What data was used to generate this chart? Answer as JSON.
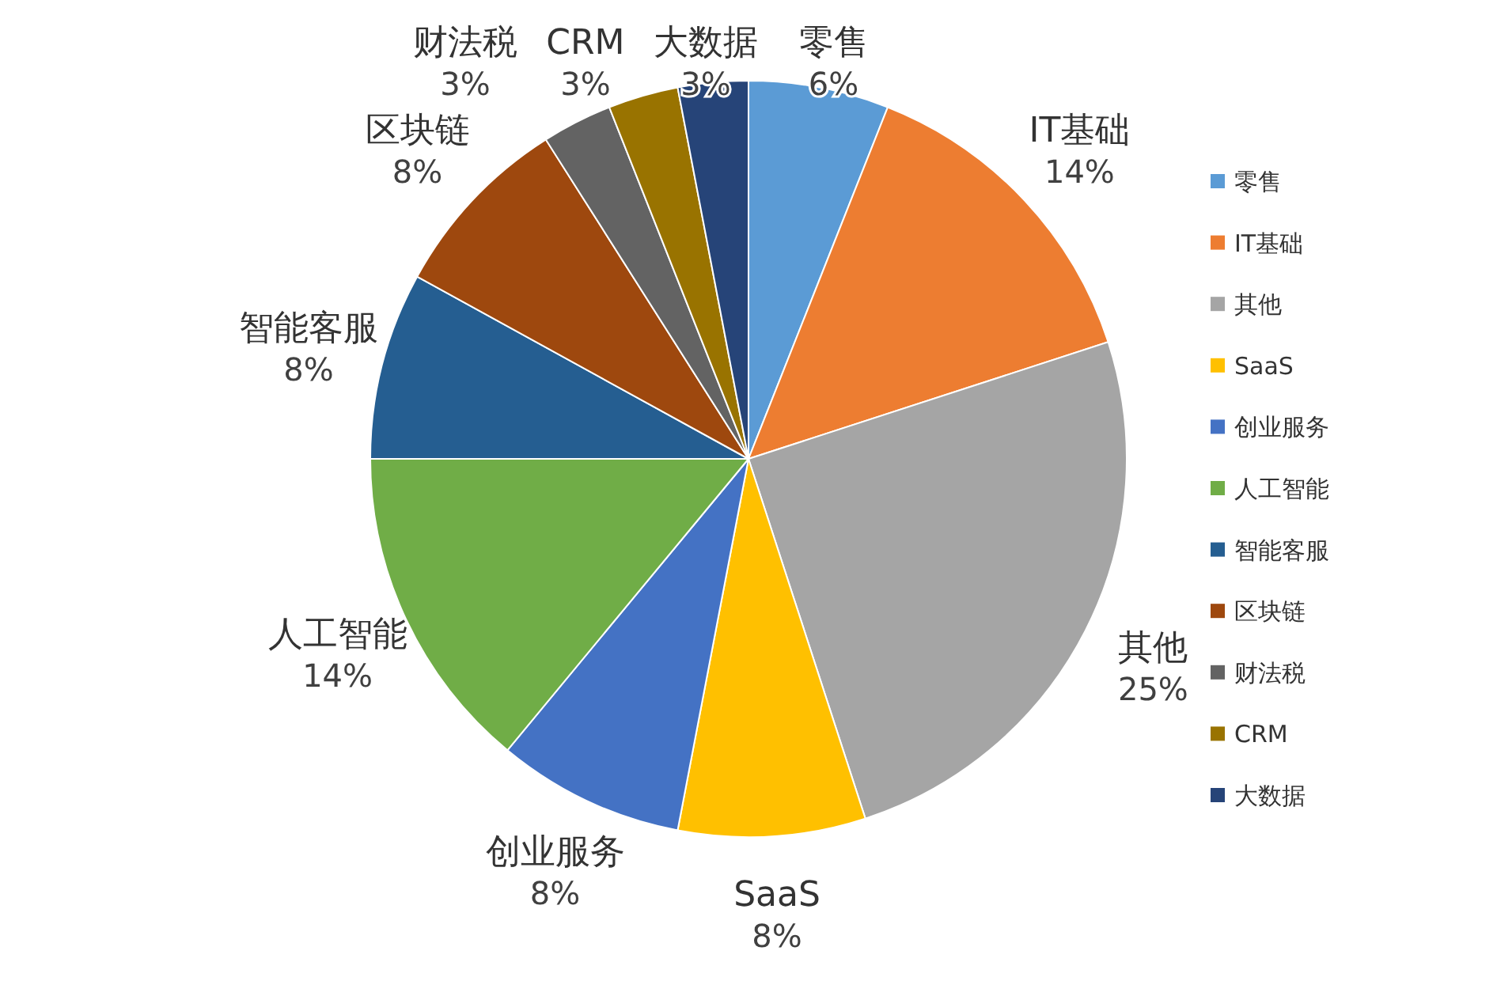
{
  "chart_data": {
    "type": "pie",
    "categories": [
      "零售",
      "IT基础",
      "其他",
      "SaaS",
      "创业服务",
      "人工智能",
      "智能客服",
      "区块链",
      "财法税",
      "CRM",
      "大数据"
    ],
    "values": [
      6,
      14,
      25,
      8,
      8,
      14,
      8,
      8,
      3,
      3,
      3
    ],
    "colors": [
      "#5b9bd5",
      "#ed7d31",
      "#a5a5a5",
      "#ffc000",
      "#4472c4",
      "#70ad47",
      "#255e91",
      "#9e480e",
      "#636363",
      "#997300",
      "#264478"
    ],
    "value_labels": [
      "6%",
      "14%",
      "25%",
      "8%",
      "8%",
      "14%",
      "8%",
      "8%",
      "3%",
      "3%",
      "3%"
    ],
    "legend": "right"
  }
}
